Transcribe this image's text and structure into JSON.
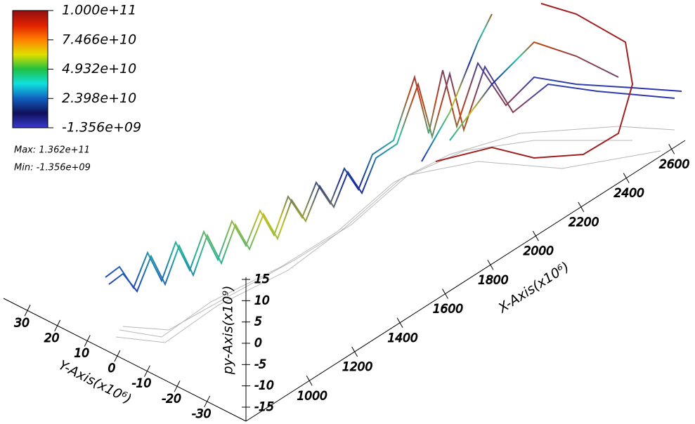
{
  "chart_data": {
    "type": "3d-trajectory",
    "colorbar": {
      "lim": [
        -1356000000,
        100000000000
      ],
      "ticks": [
        {
          "value": 100000000000,
          "label": "1.000e+11"
        },
        {
          "value": 74660000000,
          "label": "7.466e+10"
        },
        {
          "value": 49320000000,
          "label": "4.932e+10"
        },
        {
          "value": 23980000000,
          "label": "2.398e+10"
        },
        {
          "value": -1356000000,
          "label": "-1.356e+09"
        }
      ],
      "colors": [
        "#3a3ad0",
        "#10105a",
        "#1060c0",
        "#10e0e0",
        "#20c040",
        "#e0e000",
        "#ff8000",
        "#e02000",
        "#901010"
      ]
    },
    "max_label": "Max: 1.362e+11",
    "min_label": "Min: -1.356e+09",
    "xlabel": "X-Axis(x10⁶)",
    "xlim": [
      720,
      2660
    ],
    "xticks": [
      1000,
      1200,
      1400,
      1600,
      1800,
      2000,
      2200,
      2400,
      2600
    ],
    "ylabel": "Y-Axis(x10⁶)",
    "ylim": [
      38,
      -43
    ],
    "yticks": [
      30,
      20,
      10,
      0,
      -10,
      -20,
      -30
    ],
    "zlabel": "py-Axis(x10⁹)",
    "zlim": [
      -18.3,
      15.5
    ],
    "zticks": [
      15,
      10,
      5,
      0,
      -5,
      -10,
      -15
    ]
  }
}
